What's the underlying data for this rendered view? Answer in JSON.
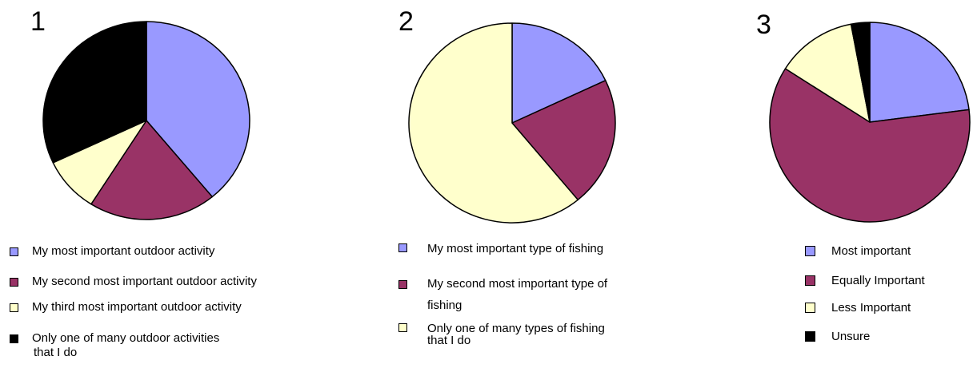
{
  "chart_data": [
    {
      "type": "pie",
      "title": "1",
      "slices": [
        {
          "label": "My most important outdoor activity",
          "value": 39,
          "color": "#9999ff"
        },
        {
          "label": "My second most important outdoor activity",
          "value": 20,
          "color": "#993366"
        },
        {
          "label": "My third most important outdoor activity",
          "value": 9,
          "color": "#ffffcc"
        },
        {
          "label": "Only one of many outdoor activities",
          "label_line2": "that I do",
          "value": 32,
          "color": "#000000"
        }
      ],
      "legend_position": "bottom-left"
    },
    {
      "type": "pie",
      "title": "2",
      "slices": [
        {
          "label": "My most important type of fishing",
          "value": 18,
          "color": "#9999ff"
        },
        {
          "label": "My second most important type of",
          "label_line2": "fishing",
          "value": 21,
          "color": "#993366"
        },
        {
          "label": "Only one of many types of fishing",
          "label_line2": "that I do",
          "value": 61,
          "color": "#ffffcc"
        }
      ],
      "legend_position": "bottom"
    },
    {
      "type": "pie",
      "title": "3",
      "slices": [
        {
          "label": "Most important",
          "value": 23,
          "color": "#9999ff"
        },
        {
          "label": "Equally Important",
          "value": 61,
          "color": "#993366"
        },
        {
          "label": "Less Important",
          "value": 13,
          "color": "#ffffcc"
        },
        {
          "label": "Unsure",
          "value": 3,
          "color": "#000000"
        }
      ],
      "legend_position": "bottom-right"
    }
  ]
}
